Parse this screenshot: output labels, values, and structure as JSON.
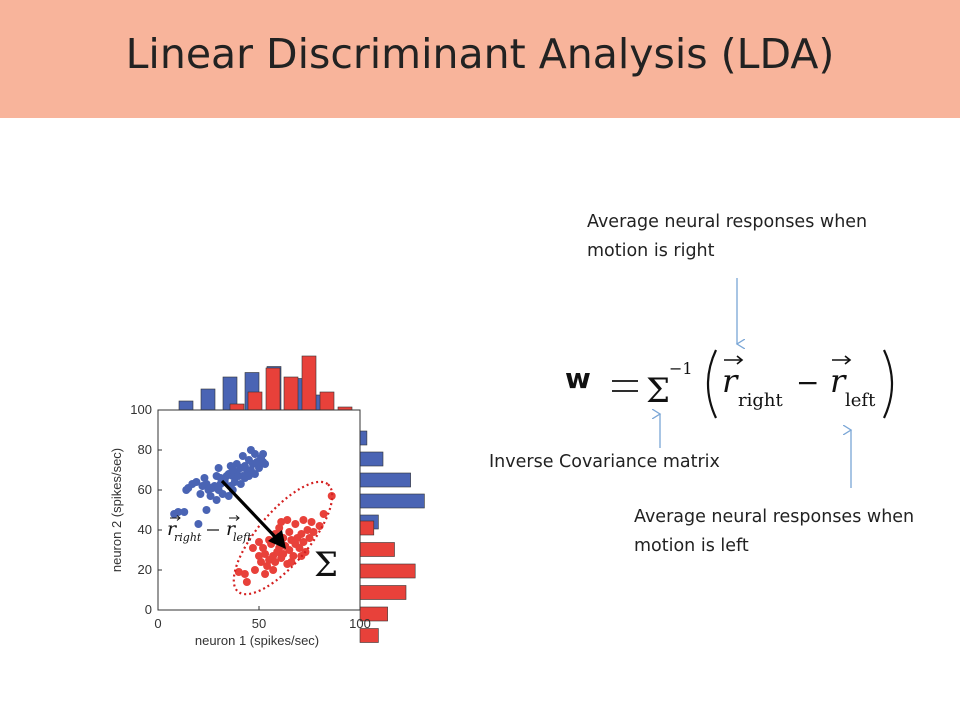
{
  "title": "Linear Discriminant Analysis (LDA)",
  "annotations": {
    "right_line1": "Average neural responses when",
    "right_line2": "motion is right",
    "left_line1": "Average neural responses when",
    "left_line2": "motion is left",
    "inverse": "Inverse Covariance matrix"
  },
  "equation": {
    "w": "w",
    "sigma_inv": "Σ",
    "power": "−1",
    "r": "r",
    "sub_right": "right",
    "sub_left": "left",
    "minus": "−"
  },
  "plot": {
    "inset_label_r": "r",
    "inset_sub_right": "right",
    "inset_sub_left": "left",
    "sigma_label": "Σ"
  },
  "chart_data": {
    "type": "scatter",
    "xlabel": "neuron 1 (spikes/sec)",
    "ylabel": "neuron 2 (spikes/sec)",
    "xlim": [
      0,
      100
    ],
    "ylim": [
      0,
      100
    ],
    "xticks": [
      0,
      50,
      100
    ],
    "yticks": [
      0,
      20,
      40,
      60,
      80,
      100
    ],
    "colors": {
      "right": "#e8413a",
      "left": "#4a64b4"
    },
    "series": [
      {
        "color": "#4a64b4",
        "points": [
          [
            8,
            48
          ],
          [
            10,
            49
          ],
          [
            13,
            49
          ],
          [
            14,
            60
          ],
          [
            15,
            61
          ],
          [
            17,
            63
          ],
          [
            19,
            64
          ],
          [
            21,
            58
          ],
          [
            22,
            62
          ],
          [
            23,
            66
          ],
          [
            24,
            63
          ],
          [
            25,
            60
          ],
          [
            26,
            57
          ],
          [
            27,
            61
          ],
          [
            28,
            62
          ],
          [
            29,
            67
          ],
          [
            30,
            60
          ],
          [
            31,
            63
          ],
          [
            32,
            58
          ],
          [
            33,
            65
          ],
          [
            34,
            67
          ],
          [
            35,
            68
          ],
          [
            36,
            62
          ],
          [
            36,
            72
          ],
          [
            37,
            67
          ],
          [
            38,
            64
          ],
          [
            39,
            69
          ],
          [
            40,
            67
          ],
          [
            41,
            63
          ],
          [
            42,
            67
          ],
          [
            43,
            66
          ],
          [
            44,
            70
          ],
          [
            45,
            67
          ],
          [
            46,
            70
          ],
          [
            47,
            73
          ],
          [
            48,
            68
          ],
          [
            49,
            74
          ],
          [
            50,
            71
          ],
          [
            46,
            80
          ],
          [
            48,
            78
          ],
          [
            51,
            76
          ],
          [
            52,
            74
          ],
          [
            52,
            78
          ],
          [
            53,
            73
          ],
          [
            41,
            71
          ],
          [
            30,
            71
          ],
          [
            33,
            64
          ],
          [
            37,
            60
          ],
          [
            24,
            50
          ],
          [
            20,
            43
          ],
          [
            26,
            61
          ],
          [
            29,
            55
          ],
          [
            43,
            72
          ],
          [
            31,
            66
          ],
          [
            35,
            57
          ],
          [
            37,
            70
          ],
          [
            39,
            73
          ],
          [
            42,
            77
          ],
          [
            45,
            75
          ]
        ]
      },
      {
        "color": "#e8413a",
        "points": [
          [
            40,
            19
          ],
          [
            43,
            18
          ],
          [
            44,
            14
          ],
          [
            48,
            20
          ],
          [
            50,
            27
          ],
          [
            51,
            24
          ],
          [
            52,
            31
          ],
          [
            53,
            28
          ],
          [
            54,
            22
          ],
          [
            55,
            25
          ],
          [
            56,
            33
          ],
          [
            57,
            27
          ],
          [
            58,
            24
          ],
          [
            59,
            29
          ],
          [
            60,
            31
          ],
          [
            61,
            26
          ],
          [
            62,
            28
          ],
          [
            63,
            32
          ],
          [
            64,
            23
          ],
          [
            65,
            30
          ],
          [
            66,
            35
          ],
          [
            67,
            27
          ],
          [
            68,
            33
          ],
          [
            69,
            36
          ],
          [
            70,
            31
          ],
          [
            71,
            38
          ],
          [
            72,
            34
          ],
          [
            73,
            29
          ],
          [
            74,
            40
          ],
          [
            75,
            36
          ],
          [
            76,
            44
          ],
          [
            77,
            39
          ],
          [
            80,
            42
          ],
          [
            82,
            48
          ],
          [
            86,
            57
          ],
          [
            47,
            31
          ],
          [
            50,
            34
          ],
          [
            55,
            35
          ],
          [
            58,
            38
          ],
          [
            60,
            41
          ],
          [
            65,
            39
          ],
          [
            68,
            43
          ],
          [
            53,
            18
          ],
          [
            57,
            20
          ],
          [
            62,
            36
          ],
          [
            66,
            24
          ],
          [
            71,
            27
          ],
          [
            72,
            45
          ],
          [
            64,
            45
          ],
          [
            61,
            44
          ]
        ]
      }
    ],
    "histograms": {
      "top_blue": [
        6,
        14,
        22,
        25,
        29,
        21,
        10
      ],
      "top_red": [
        4,
        12,
        28,
        22,
        36,
        12,
        2
      ],
      "right_blue": [
        3,
        10,
        22,
        28,
        8
      ],
      "right_red": [
        6,
        15,
        24,
        20,
        12,
        8
      ]
    }
  }
}
